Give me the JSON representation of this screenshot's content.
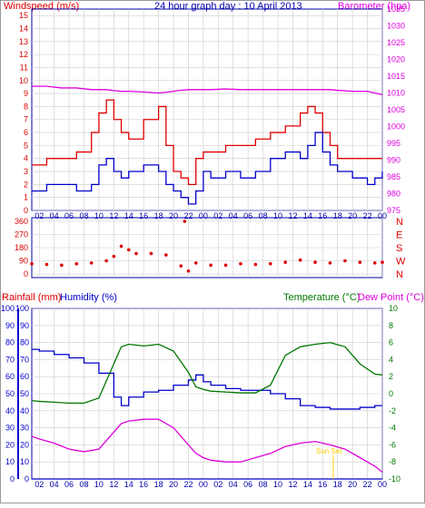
{
  "title": "24 hour graph day : 10 April 2013",
  "colors": {
    "wind": "#dd0000",
    "gust": "#0000cc",
    "baro": "#dd00dd",
    "winddir": "#dd0000",
    "rain": "#0000cc",
    "humidity": "#0000cc",
    "temperature": "#007700",
    "dewpoint": "#dd00dd",
    "sunset": "#ffd000",
    "grid": "#cccccc",
    "frame": "#0000aa"
  },
  "x_labels": [
    "02",
    "04",
    "06",
    "08",
    "10",
    "12",
    "14",
    "16",
    "18",
    "20",
    "22",
    "00",
    "02",
    "04",
    "06",
    "08",
    "10",
    "12",
    "14",
    "16",
    "18",
    "20",
    "22",
    "00"
  ],
  "top_panel": {
    "left_title": "Windspeed (m/s)",
    "right_title": "Barometer (hpa)",
    "left_ticks": [
      0,
      1,
      2,
      3,
      4,
      5,
      6,
      7,
      8,
      9,
      10,
      11,
      12,
      13,
      14,
      15
    ],
    "right_ticks": [
      975,
      980,
      985,
      990,
      995,
      1000,
      1005,
      1010,
      1015,
      1020,
      1025,
      1030,
      1035
    ]
  },
  "wind_panel": {
    "left_ticks": [
      0,
      90,
      180,
      270,
      360
    ],
    "right_labels": [
      "N",
      "W",
      "S",
      "E",
      "N"
    ]
  },
  "bottom_panel": {
    "rain_title": "Rainfall (mm)",
    "hum_title": "Humidity (%)",
    "temp_title": "Temperature (°C)",
    "dew_title": "Dew Point (°C)",
    "left_ticks": [
      0,
      10,
      20,
      30,
      40,
      50,
      60,
      70,
      80,
      90,
      100
    ],
    "right_ticks": [
      -10,
      -8,
      -6,
      -4,
      -2,
      0,
      2,
      4,
      6,
      8,
      10
    ],
    "sunset_label": "Sun Set"
  },
  "chart_data": [
    {
      "type": "line",
      "title": "24 hour graph day : 10 April 2013",
      "x": [
        "01",
        "03",
        "05",
        "07",
        "09",
        "10",
        "11",
        "12",
        "13",
        "14",
        "16",
        "18",
        "19",
        "20",
        "21",
        "22",
        "23",
        "00",
        "01",
        "03",
        "05",
        "07",
        "09",
        "11",
        "13",
        "14",
        "15",
        "16",
        "17",
        "18",
        "20",
        "22",
        "23",
        "00"
      ],
      "series": [
        {
          "name": "Windspeed (m/s)",
          "axis": "left",
          "values": [
            3.5,
            4,
            4,
            4.5,
            6,
            7.5,
            8.5,
            7,
            6,
            5.5,
            7,
            8,
            5,
            3,
            2.5,
            2,
            4,
            4.5,
            4.5,
            5,
            5,
            5.5,
            6,
            6.5,
            7.5,
            8,
            7.5,
            6,
            5,
            4,
            4,
            4,
            4,
            4
          ]
        },
        {
          "name": "Gust (m/s)",
          "axis": "left",
          "values": [
            1.5,
            2,
            2,
            1.5,
            2,
            3.5,
            4,
            3,
            2.5,
            3,
            3.5,
            3,
            2,
            1.5,
            1,
            0.5,
            1.5,
            3,
            2.5,
            3,
            2.5,
            3,
            4,
            4.5,
            4,
            5,
            6,
            4.5,
            3.5,
            3,
            2.5,
            2,
            2.5,
            3
          ]
        },
        {
          "name": "Barometer (hpa)",
          "axis": "right",
          "values": [
            1012,
            1012,
            1011.5,
            1011.5,
            1011,
            1011,
            1011,
            1010.7,
            1010.5,
            1010.5,
            1010.3,
            1010,
            1010.2,
            1010.5,
            1010.8,
            1011,
            1011,
            1011,
            1011,
            1011.2,
            1011,
            1011,
            1011,
            1011,
            1011,
            1011,
            1011,
            1011,
            1011,
            1010.8,
            1010.5,
            1010.5,
            1010,
            1009.5
          ]
        }
      ],
      "ylim_left": [
        0,
        15.5
      ],
      "ylim_right": [
        975,
        1035
      ]
    },
    {
      "type": "scatter",
      "name": "Wind direction",
      "x": [
        "01",
        "03",
        "05",
        "07",
        "09",
        "11",
        "12",
        "13",
        "14",
        "15",
        "17",
        "19",
        "21",
        "21.5",
        "22",
        "23",
        "01",
        "03",
        "05",
        "07",
        "09",
        "11",
        "13",
        "15",
        "17",
        "19",
        "21",
        "23",
        "00"
      ],
      "values": [
        70,
        65,
        60,
        70,
        75,
        90,
        120,
        190,
        165,
        140,
        140,
        130,
        55,
        360,
        20,
        75,
        60,
        60,
        70,
        65,
        70,
        80,
        95,
        80,
        75,
        90,
        80,
        75,
        80
      ],
      "ylim": [
        0,
        360
      ]
    },
    {
      "type": "line",
      "x": [
        "01",
        "02",
        "04",
        "06",
        "08",
        "10",
        "12",
        "13",
        "14",
        "16",
        "18",
        "20",
        "22",
        "23",
        "00",
        "01",
        "03",
        "05",
        "07",
        "09",
        "11",
        "13",
        "15",
        "17",
        "19",
        "21",
        "23",
        "00"
      ],
      "series": [
        {
          "name": "Humidity (%)",
          "axis": "left",
          "values": [
            76,
            75,
            73,
            71,
            68,
            62,
            48,
            43,
            48,
            51,
            52,
            55,
            58,
            61,
            57,
            55,
            53,
            52,
            52,
            50,
            47,
            43,
            42,
            41,
            41,
            42,
            43,
            43
          ]
        },
        {
          "name": "Rainfall (mm)",
          "axis": "left",
          "values": [
            0,
            0,
            0,
            0,
            0,
            0,
            0,
            0,
            0,
            0,
            0,
            0,
            0,
            0,
            0,
            0,
            0,
            0,
            0,
            0,
            0,
            0,
            0,
            0,
            0,
            0,
            0,
            0
          ]
        },
        {
          "name": "Temperature (°C)",
          "axis": "right",
          "values": [
            -0.8,
            -0.9,
            -1.0,
            -1.1,
            -1.1,
            -0.5,
            3.5,
            5.5,
            5.8,
            5.6,
            5.8,
            5.0,
            2.5,
            0.8,
            0.5,
            0.3,
            0.2,
            0.1,
            0.1,
            1.0,
            4.5,
            5.5,
            5.8,
            6.0,
            5.5,
            3.5,
            2.3,
            2.2
          ]
        },
        {
          "name": "Dew Point (°C)",
          "axis": "right",
          "values": [
            -5.0,
            -5.3,
            -5.8,
            -6.5,
            -6.8,
            -6.5,
            -4.5,
            -3.5,
            -3.2,
            -3.0,
            -3.0,
            -4.0,
            -6.0,
            -7.0,
            -7.5,
            -7.8,
            -8.0,
            -8.0,
            -7.5,
            -7.0,
            -6.2,
            -5.8,
            -5.6,
            -6.0,
            -6.5,
            -7.5,
            -8.5,
            -9.2
          ]
        }
      ],
      "ylim_left": [
        0,
        100
      ],
      "ylim_right": [
        -10,
        10
      ]
    }
  ]
}
